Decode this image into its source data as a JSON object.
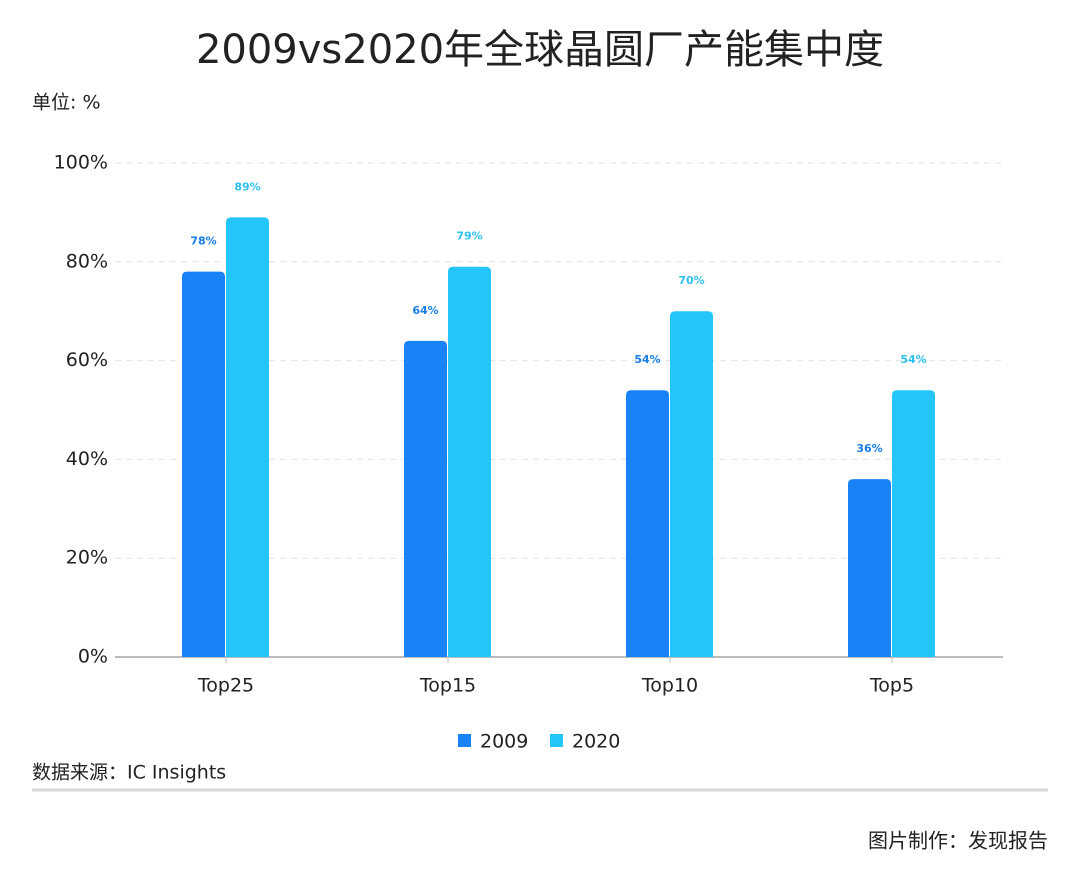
{
  "chart_data": {
    "type": "bar",
    "title": "2009vs2020年全球晶圆厂产能集中度",
    "unit_label": "单位: %",
    "categories": [
      "Top25",
      "Top15",
      "Top10",
      "Top5"
    ],
    "series": [
      {
        "name": "2009",
        "color": "#1a82f7",
        "label_color": "#1a7fe8",
        "values": [
          78,
          64,
          54,
          36
        ],
        "value_labels": [
          "78%",
          "64%",
          "54%",
          "36%"
        ]
      },
      {
        "name": "2020",
        "color": "#23c5fa",
        "label_color": "#2ec0f0",
        "values": [
          89,
          79,
          70,
          54
        ],
        "value_labels": [
          "89%",
          "79%",
          "70%",
          "54%"
        ]
      }
    ],
    "ylim": [
      0,
      100
    ],
    "yticks": [
      {
        "value": 0,
        "label": "0%"
      },
      {
        "value": 20,
        "label": "20%"
      },
      {
        "value": 40,
        "label": "40%"
      },
      {
        "value": 60,
        "label": "60%"
      },
      {
        "value": 80,
        "label": "80%"
      },
      {
        "value": 100,
        "label": "100%"
      }
    ],
    "grid": true,
    "legend": "bottom",
    "source": "数据来源：IC Insights",
    "credit": "图片制作：发现报告"
  }
}
